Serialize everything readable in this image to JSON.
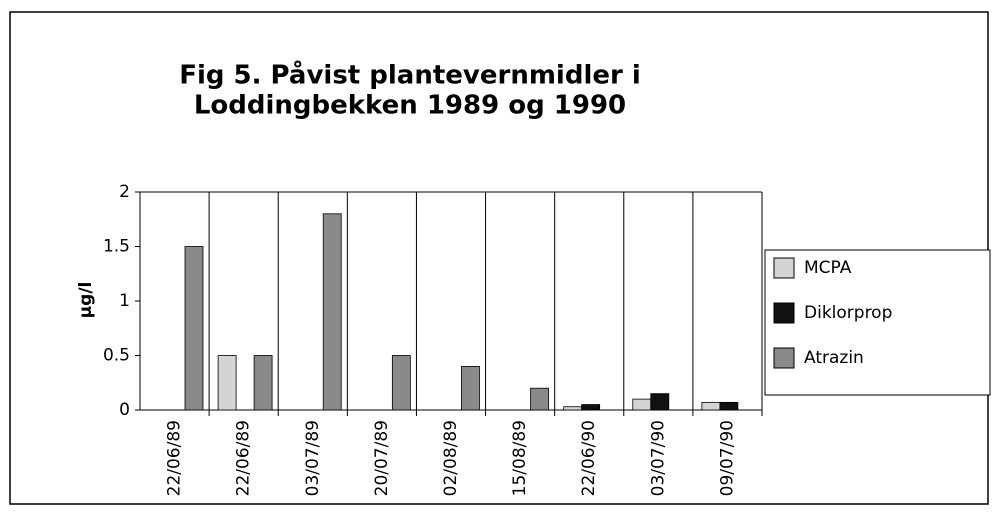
{
  "chart_data": {
    "type": "bar",
    "title": [
      "Fig 5. Påvist plantevernmidler i",
      "Loddingbekken 1989 og 1990"
    ],
    "y_label": "µg/l",
    "categories": [
      "22/06/89",
      "22/06/89",
      "03/07/89",
      "20/07/89",
      "02/08/89",
      "15/08/89",
      "22/06/90",
      "03/07/90",
      "09/07/90"
    ],
    "series": [
      {
        "name": "MCPA",
        "color": "#d4d4d4",
        "values": [
          null,
          0.5,
          null,
          null,
          null,
          null,
          0.03,
          0.1,
          0.07
        ]
      },
      {
        "name": "Diklorprop",
        "color": "#111111",
        "values": [
          null,
          null,
          null,
          null,
          null,
          null,
          0.05,
          0.15,
          0.07
        ]
      },
      {
        "name": "Atrazin",
        "color": "#8a8a8a",
        "values": [
          1.5,
          0.5,
          1.8,
          0.5,
          0.4,
          0.2,
          null,
          null,
          null
        ]
      }
    ],
    "ylim": [
      0,
      2
    ],
    "yticks": [
      0,
      0.5,
      1,
      1.5,
      2
    ],
    "grid": true,
    "legend": "right"
  }
}
